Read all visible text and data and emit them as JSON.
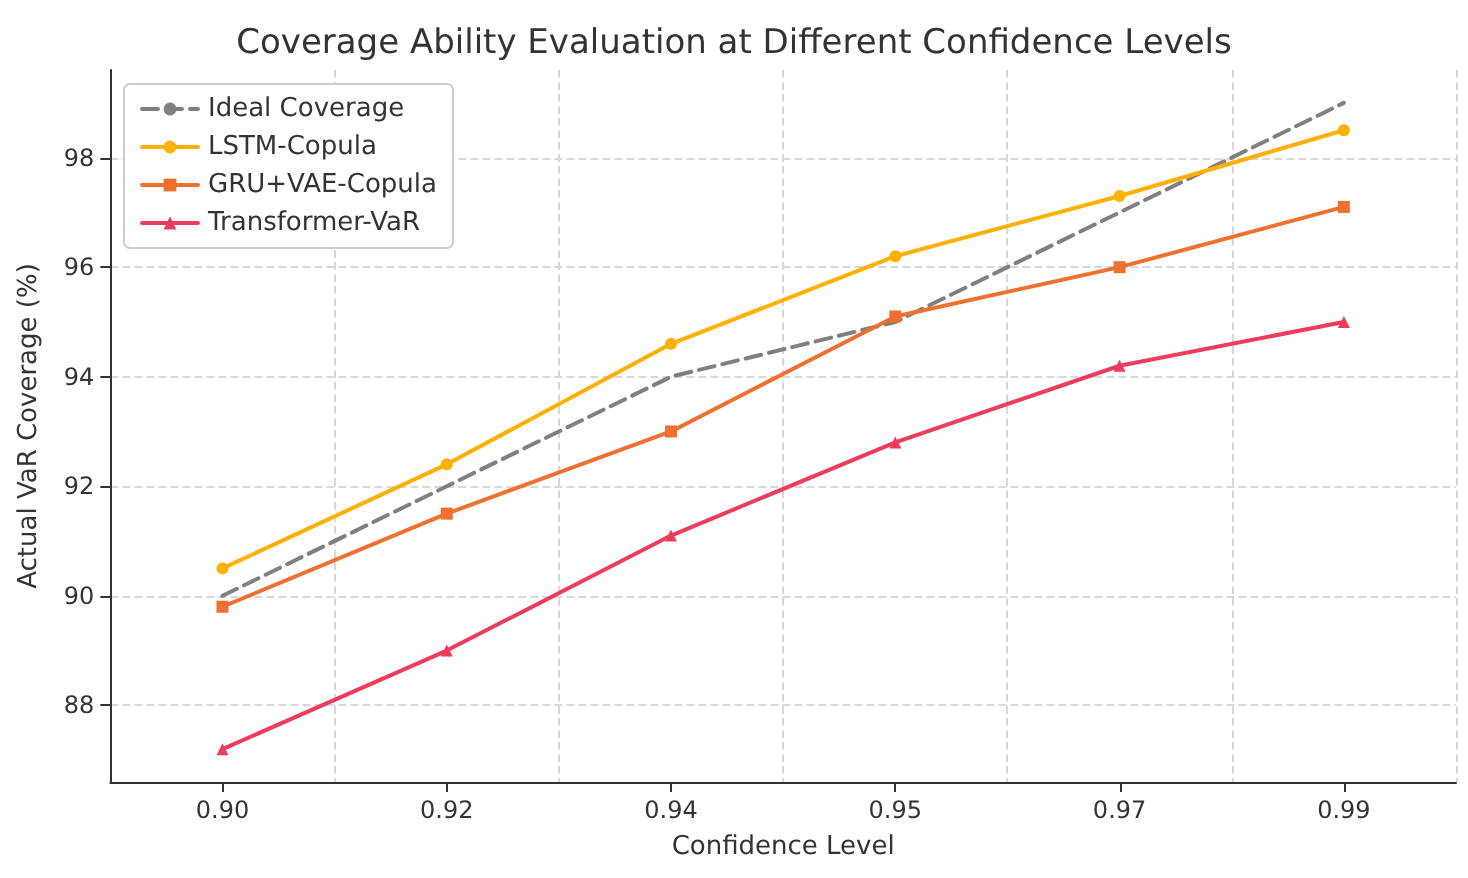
{
  "chart_data": {
    "type": "line",
    "title": "Coverage Ability Evaluation at Different Confidence Levels",
    "xlabel": "Confidence Level",
    "ylabel": "Actual VaR Coverage (%)",
    "categories": [
      "0.90",
      "0.92",
      "0.94",
      "0.95",
      "0.97",
      "0.99"
    ],
    "series": [
      {
        "name": "Ideal Coverage",
        "color": "#808080",
        "values": [
          90,
          92,
          94,
          95,
          97,
          99
        ],
        "line_style": "dashed",
        "marker": "none"
      },
      {
        "name": "LSTM-Copula",
        "color": "#ffb000",
        "values": [
          90.5,
          92.4,
          94.6,
          96.2,
          97.3,
          98.5
        ],
        "line_style": "solid",
        "marker": "circle"
      },
      {
        "name": "GRU+VAE-Copula",
        "color": "#f07030",
        "values": [
          89.8,
          91.5,
          93.0,
          95.1,
          96.0,
          97.1
        ],
        "line_style": "solid",
        "marker": "square"
      },
      {
        "name": "Transformer-VaR",
        "color": "#f03c5c",
        "values": [
          87.2,
          89.0,
          91.1,
          92.8,
          94.2,
          95.0
        ],
        "line_style": "solid",
        "marker": "triangle"
      }
    ],
    "ylim": [
      86.6,
      99.6
    ],
    "yticks": [
      88,
      90,
      92,
      94,
      96,
      98
    ],
    "grid": true,
    "legend": "top left"
  }
}
